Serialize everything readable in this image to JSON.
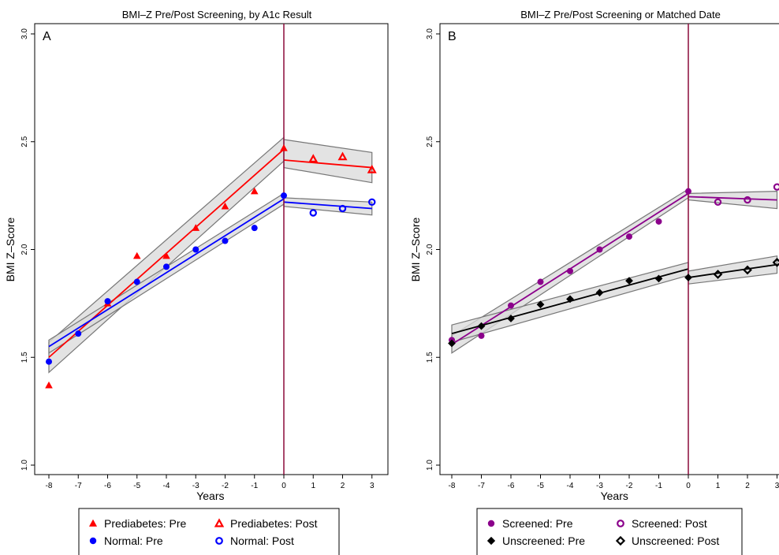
{
  "chart_data": [
    {
      "type": "scatter",
      "panel_letter": "A",
      "title": "BMI–Z Pre/Post Screening, by A1c Result",
      "xlabel": "Years",
      "ylabel": "BMI Z–Score",
      "xlim": [
        -8.3,
        3.3
      ],
      "ylim": [
        1.0,
        3.0
      ],
      "xticks": [
        "-8",
        "-7",
        "-6",
        "-5",
        "-4",
        "-3",
        "-2",
        "-1",
        "0",
        "1",
        "2",
        "3"
      ],
      "yticks": [
        "1.0",
        "1.5",
        "2.0",
        "2.5",
        "3.0"
      ],
      "divider_x": 0,
      "legend_position": "bottom",
      "series": [
        {
          "name": "Prediabetes: Pre",
          "color": "#ff0000",
          "marker": "triangle-filled",
          "x": [
            -8,
            -6,
            -5,
            -4,
            -3,
            -2,
            -1,
            0
          ],
          "y": [
            1.37,
            1.75,
            1.97,
            1.97,
            2.1,
            2.2,
            2.27,
            2.47
          ]
        },
        {
          "name": "Prediabetes: Post",
          "color": "#ff0000",
          "marker": "triangle-open",
          "x": [
            1,
            2,
            3
          ],
          "y": [
            2.42,
            2.43,
            2.37
          ]
        },
        {
          "name": "Normal: Pre",
          "color": "#0000ff",
          "marker": "circle-filled",
          "x": [
            -8,
            -7,
            -6,
            -5,
            -4,
            -3,
            -2,
            -1,
            0
          ],
          "y": [
            1.48,
            1.61,
            1.76,
            1.85,
            1.92,
            2.0,
            2.04,
            2.1,
            2.25
          ]
        },
        {
          "name": "Normal: Post",
          "color": "#0000ff",
          "marker": "circle-open",
          "x": [
            1,
            2,
            3
          ],
          "y": [
            2.17,
            2.19,
            2.22
          ]
        }
      ],
      "fits": [
        {
          "color": "#ff0000",
          "x": [
            -8,
            0
          ],
          "y": [
            1.5,
            2.465
          ],
          "lo": [
            1.43,
            2.41
          ],
          "hi": [
            1.57,
            2.52
          ]
        },
        {
          "color": "#ff0000",
          "x": [
            0,
            3
          ],
          "y": [
            2.415,
            2.38
          ],
          "lo": [
            2.38,
            2.31
          ],
          "hi": [
            2.51,
            2.45
          ]
        },
        {
          "color": "#0000ff",
          "x": [
            -8,
            0
          ],
          "y": [
            1.55,
            2.235
          ],
          "lo": [
            1.52,
            2.21
          ],
          "hi": [
            1.58,
            2.26
          ]
        },
        {
          "color": "#0000ff",
          "x": [
            0,
            3
          ],
          "y": [
            2.22,
            2.19
          ],
          "lo": [
            2.2,
            2.16
          ],
          "hi": [
            2.24,
            2.22
          ]
        }
      ]
    },
    {
      "type": "scatter",
      "panel_letter": "B",
      "title": "BMI–Z Pre/Post Screening or Matched Date",
      "xlabel": "Years",
      "ylabel": "BMI Z–Score",
      "xlim": [
        -8.3,
        3.3
      ],
      "ylim": [
        1.0,
        3.0
      ],
      "xticks": [
        "-8",
        "-7",
        "-6",
        "-5",
        "-4",
        "-3",
        "-2",
        "-1",
        "0",
        "1",
        "2",
        "3"
      ],
      "yticks": [
        "1.0",
        "1.5",
        "2.0",
        "2.5",
        "3.0"
      ],
      "divider_x": 0,
      "legend_position": "bottom",
      "series": [
        {
          "name": "Screened: Pre",
          "color": "#8b008b",
          "marker": "circle-filled",
          "x": [
            -8,
            -7,
            -6,
            -5,
            -4,
            -3,
            -2,
            -1,
            0
          ],
          "y": [
            1.58,
            1.6,
            1.74,
            1.85,
            1.9,
            2.0,
            2.06,
            2.13,
            2.27
          ]
        },
        {
          "name": "Screened: Post",
          "color": "#8b008b",
          "marker": "circle-open",
          "x": [
            1,
            2,
            3
          ],
          "y": [
            2.22,
            2.23,
            2.29
          ]
        },
        {
          "name": "Unscreened: Pre",
          "color": "#000000",
          "marker": "diamond-filled",
          "x": [
            -8,
            -7,
            -6,
            -5,
            -4,
            -3,
            -2,
            -1,
            0
          ],
          "y": [
            1.565,
            1.645,
            1.68,
            1.745,
            1.77,
            1.8,
            1.855,
            1.865,
            1.87
          ]
        },
        {
          "name": "Unscreened: Post",
          "color": "#000000",
          "marker": "diamond-open",
          "x": [
            1,
            2,
            3
          ],
          "y": [
            1.885,
            1.905,
            1.94
          ]
        }
      ],
      "fits": [
        {
          "color": "#8b008b",
          "x": [
            -8,
            0
          ],
          "y": [
            1.56,
            2.26
          ],
          "lo": [
            1.52,
            2.24
          ],
          "hi": [
            1.6,
            2.28
          ]
        },
        {
          "color": "#8b008b",
          "x": [
            0,
            3
          ],
          "y": [
            2.245,
            2.23
          ],
          "lo": [
            2.23,
            2.19
          ],
          "hi": [
            2.26,
            2.27
          ]
        },
        {
          "color": "#000000",
          "x": [
            -8,
            0
          ],
          "y": [
            1.61,
            1.91
          ],
          "lo": [
            1.57,
            1.88
          ],
          "hi": [
            1.65,
            1.94
          ]
        },
        {
          "color": "#000000",
          "x": [
            0,
            3
          ],
          "y": [
            1.87,
            1.93
          ],
          "lo": [
            1.84,
            1.89
          ],
          "hi": [
            1.9,
            1.97
          ]
        }
      ]
    }
  ]
}
